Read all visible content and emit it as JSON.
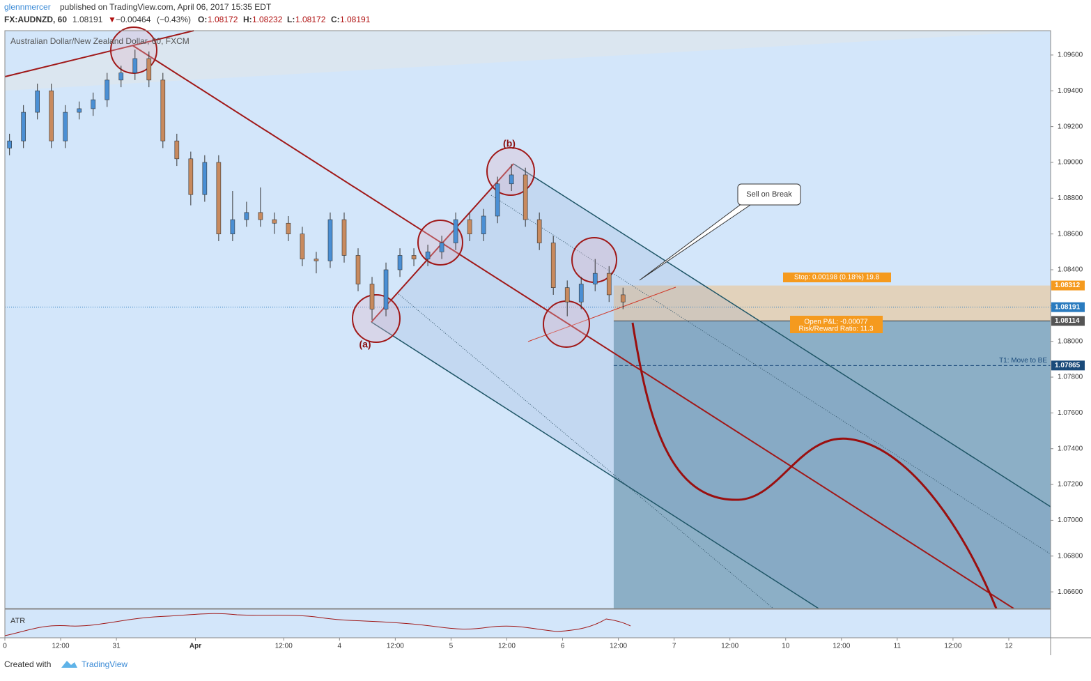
{
  "header": {
    "author": "glennmercer",
    "published": "published on TradingView.com, April 06, 2017 15:35 EDT",
    "symbol": "FX:AUDNZD, 60",
    "last": 1.08191,
    "arrow": "▼",
    "change": {
      "value": -0.00464,
      "label": "−0.00464"
    },
    "change_pct": {
      "value": -0.43,
      "label": "(−0.43%)"
    },
    "o_label": "O:",
    "open": 1.08172,
    "h_label": "H:",
    "high": 1.08232,
    "l_label": "L:",
    "low": 1.08172,
    "c_label": "C:",
    "close": 1.08191
  },
  "chart_data": {
    "type": "candlestick",
    "title": "Australian Dollar/New Zealand Dollar, 60, FXCM",
    "x": [
      1,
      4,
      7,
      10,
      13,
      16,
      19,
      22,
      25,
      28,
      31,
      34,
      37,
      40,
      43,
      46,
      49,
      52,
      55,
      58,
      61,
      64,
      67,
      70,
      73,
      76,
      79,
      82,
      85,
      88,
      91,
      94,
      97,
      100,
      103,
      106,
      109,
      112,
      115,
      118,
      121,
      124,
      127,
      130,
      133
    ],
    "open": [
      1.0908,
      1.0912,
      1.0928,
      1.094,
      1.0912,
      1.0928,
      1.093,
      1.0935,
      1.0946,
      1.095,
      1.0958,
      1.0946,
      1.0912,
      1.0902,
      1.0882,
      1.09,
      1.086,
      1.0868,
      1.0872,
      1.0868,
      1.0866,
      1.086,
      1.0846,
      1.0845,
      1.0868,
      1.0848,
      1.0832,
      1.0818,
      1.084,
      1.0848,
      1.0846,
      1.085,
      1.0855,
      1.0868,
      1.086,
      1.087,
      1.0888,
      1.0893,
      1.0868,
      1.0855,
      1.083,
      1.0822,
      1.0832,
      1.0838,
      1.0826
    ],
    "high": [
      1.0916,
      1.0932,
      1.0944,
      1.0944,
      1.0932,
      1.0934,
      1.0939,
      1.095,
      1.0954,
      1.0963,
      1.0962,
      1.095,
      1.0916,
      1.0906,
      1.0904,
      1.0904,
      1.0884,
      1.0878,
      1.0886,
      1.0872,
      1.087,
      1.0864,
      1.085,
      1.0872,
      1.0872,
      1.0852,
      1.0836,
      1.0844,
      1.0852,
      1.0852,
      1.0854,
      1.0859,
      1.0872,
      1.0872,
      1.0874,
      1.0892,
      1.0899,
      1.0897,
      1.0872,
      1.0859,
      1.0834,
      1.0836,
      1.0846,
      1.0842,
      1.083
    ],
    "low": [
      1.0904,
      1.0908,
      1.0924,
      1.0908,
      1.0908,
      1.0924,
      1.0926,
      1.0931,
      1.0942,
      1.0946,
      1.0942,
      1.0908,
      1.0898,
      1.0876,
      1.0878,
      1.0856,
      1.0856,
      1.0864,
      1.0864,
      1.086,
      1.0856,
      1.0842,
      1.0838,
      1.0841,
      1.0844,
      1.0828,
      1.0812,
      1.0814,
      1.0836,
      1.0842,
      1.0842,
      1.0846,
      1.0851,
      1.0856,
      1.0856,
      1.0866,
      1.0884,
      1.0864,
      1.0851,
      1.0826,
      1.0814,
      1.0818,
      1.0828,
      1.0822,
      1.0818
    ],
    "close": [
      1.0912,
      1.0928,
      1.094,
      1.0912,
      1.0928,
      1.093,
      1.0935,
      1.0946,
      1.095,
      1.0958,
      1.0946,
      1.0912,
      1.0902,
      1.0882,
      1.09,
      1.086,
      1.0868,
      1.0872,
      1.0868,
      1.0866,
      1.086,
      1.0846,
      1.0845,
      1.0868,
      1.0848,
      1.0832,
      1.0818,
      1.084,
      1.0848,
      1.0846,
      1.085,
      1.0855,
      1.0868,
      1.086,
      1.087,
      1.0888,
      1.0893,
      1.0868,
      1.0855,
      1.083,
      1.0822,
      1.0832,
      1.0838,
      1.0826,
      1.0822
    ],
    "up_color": "#4a8fd4",
    "down_color": "#c88a5e",
    "xlim": [
      0,
      225
    ],
    "xticks": [
      {
        "value": 0,
        "label": "0"
      },
      {
        "value": 12,
        "label": "12:00"
      },
      {
        "value": 24,
        "label": "31"
      },
      {
        "value": 41,
        "label": "Apr"
      },
      {
        "value": 60,
        "label": "12:00"
      },
      {
        "value": 72,
        "label": "4"
      },
      {
        "value": 84,
        "label": "12:00"
      },
      {
        "value": 96,
        "label": "5"
      },
      {
        "value": 108,
        "label": "12:00"
      },
      {
        "value": 120,
        "label": "6"
      },
      {
        "value": 132,
        "label": "12:00"
      },
      {
        "value": 144,
        "label": "7"
      },
      {
        "value": 156,
        "label": "12:00"
      },
      {
        "value": 168,
        "label": "10"
      },
      {
        "value": 180,
        "label": "12:00"
      },
      {
        "value": 192,
        "label": "11"
      },
      {
        "value": 204,
        "label": "12:00"
      },
      {
        "value": 216,
        "label": "12"
      }
    ],
    "ylim": [
      1.06507,
      1.09736
    ],
    "yticks": [
      {
        "value": 1.066,
        "label": "1.06600"
      },
      {
        "value": 1.068,
        "label": "1.06800"
      },
      {
        "value": 1.07,
        "label": "1.07000"
      },
      {
        "value": 1.072,
        "label": "1.07200"
      },
      {
        "value": 1.074,
        "label": "1.07400"
      },
      {
        "value": 1.076,
        "label": "1.07600"
      },
      {
        "value": 1.078,
        "label": "1.07800"
      },
      {
        "value": 1.08,
        "label": "1.08000"
      },
      {
        "value": 1.082,
        "label": "1.08200"
      },
      {
        "value": 1.084,
        "label": "1.08400"
      },
      {
        "value": 1.086,
        "label": "1.08600"
      },
      {
        "value": 1.088,
        "label": "1.08800"
      },
      {
        "value": 1.09,
        "label": "1.09000"
      },
      {
        "value": 1.092,
        "label": "1.09200"
      },
      {
        "value": 1.094,
        "label": "1.09400"
      },
      {
        "value": 1.096,
        "label": "1.09600"
      }
    ],
    "position": {
      "entry_x": 131,
      "stop": 1.08312,
      "last": 1.08191,
      "entry": 1.08114,
      "target1": 1.07865,
      "stop_label": "Stop: 0.00198 (0.18%) 19.8",
      "pnl_label": "Open P&L: -0.00077",
      "rr_label": "Risk/Reward Ratio: 11.3",
      "t1_label": "T1:  Move to BE"
    },
    "annotations": {
      "a": "(a)",
      "b": "(b)",
      "callout": "Sell on Break"
    },
    "indicator": "ATR"
  },
  "footer": {
    "created": "Created with",
    "brand": "TradingView"
  }
}
